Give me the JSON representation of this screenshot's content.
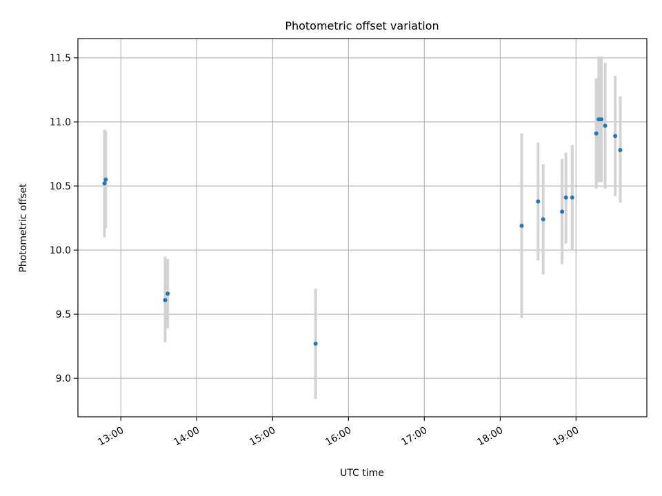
{
  "chart_data": {
    "type": "scatter",
    "title": "Photometric offset variation",
    "xlabel": "UTC time",
    "ylabel": "Photometric offset",
    "x_axis": {
      "kind": "time",
      "range": [
        "12:26",
        "19:56"
      ],
      "ticks": [
        "13:00",
        "14:00",
        "15:00",
        "16:00",
        "17:00",
        "18:00",
        "19:00"
      ]
    },
    "ylim": [
      8.7,
      11.65
    ],
    "yticks": [
      "9.0",
      "9.5",
      "10.0",
      "10.5",
      "11.0",
      "11.5"
    ],
    "grid": true,
    "colors": {
      "point": "#1f77b4",
      "errorbar": "#d3d3d3",
      "grid": "#b0b0b0"
    },
    "points": [
      {
        "time": "12:47",
        "y": 10.52,
        "low": 10.1,
        "high": 10.94
      },
      {
        "time": "12:48",
        "y": 10.55,
        "low": 10.17,
        "high": 10.93
      },
      {
        "time": "13:35",
        "y": 9.61,
        "low": 9.28,
        "high": 9.95
      },
      {
        "time": "13:37",
        "y": 9.66,
        "low": 9.39,
        "high": 9.93
      },
      {
        "time": "15:34",
        "y": 9.27,
        "low": 8.84,
        "high": 9.7
      },
      {
        "time": "18:17",
        "y": 10.19,
        "low": 9.47,
        "high": 10.91
      },
      {
        "time": "18:30",
        "y": 10.38,
        "low": 9.92,
        "high": 10.84
      },
      {
        "time": "18:34",
        "y": 10.24,
        "low": 9.81,
        "high": 10.67
      },
      {
        "time": "18:49",
        "y": 10.3,
        "low": 9.89,
        "high": 10.71
      },
      {
        "time": "18:52",
        "y": 10.41,
        "low": 10.05,
        "high": 10.76
      },
      {
        "time": "18:57",
        "y": 10.41,
        "low": 10.0,
        "high": 10.82
      },
      {
        "time": "19:16",
        "y": 10.91,
        "low": 10.48,
        "high": 11.34
      },
      {
        "time": "19:18",
        "y": 11.02,
        "low": 10.53,
        "high": 11.51
      },
      {
        "time": "19:20",
        "y": 11.02,
        "low": 10.53,
        "high": 11.51
      },
      {
        "time": "19:23",
        "y": 10.97,
        "low": 10.48,
        "high": 11.46
      },
      {
        "time": "19:31",
        "y": 10.89,
        "low": 10.42,
        "high": 11.36
      },
      {
        "time": "19:35",
        "y": 10.78,
        "low": 10.37,
        "high": 11.2
      }
    ]
  }
}
